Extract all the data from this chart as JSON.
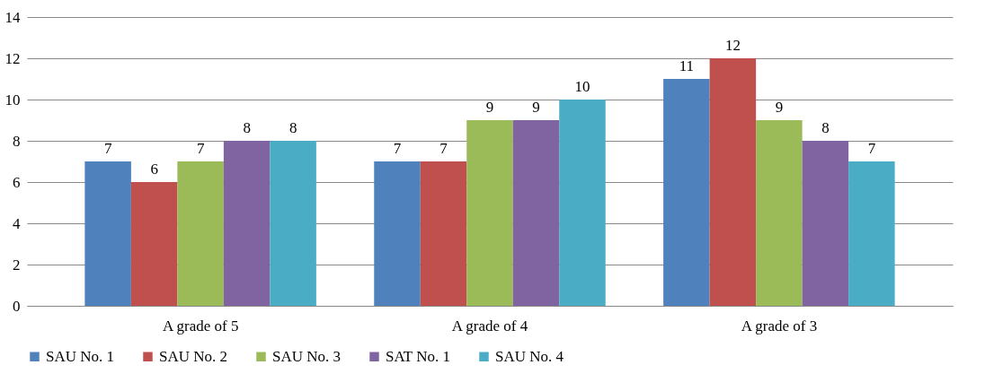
{
  "chart_data": {
    "type": "bar",
    "categories": [
      "A grade of 5",
      "A grade of 4",
      "A grade of 3"
    ],
    "series": [
      {
        "name": "SAU No. 1",
        "color": "#4f81bd",
        "values": [
          7,
          7,
          11
        ]
      },
      {
        "name": "SAU No. 2",
        "color": "#c0504d",
        "values": [
          6,
          7,
          12
        ]
      },
      {
        "name": "SAU No. 3",
        "color": "#9bbb59",
        "values": [
          7,
          9,
          9
        ]
      },
      {
        "name": "SAT No. 1",
        "color": "#8064a2",
        "values": [
          8,
          9,
          8
        ]
      },
      {
        "name": "SAU No. 4",
        "color": "#4bacc6",
        "values": [
          8,
          10,
          7
        ]
      }
    ],
    "ylim": [
      0,
      14
    ],
    "yticks": [
      0,
      2,
      4,
      6,
      8,
      10,
      12,
      14
    ],
    "grid": "y",
    "legend": "bottom",
    "data_labels": true
  }
}
